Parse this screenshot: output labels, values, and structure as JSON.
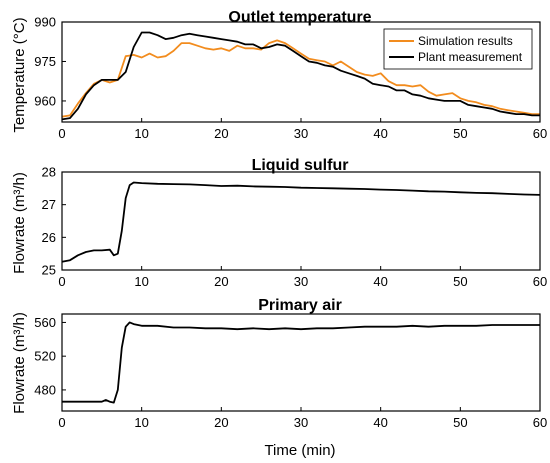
{
  "xlabel": "Time (min)",
  "colors": {
    "simulation": "#F28C1E",
    "plant": "#000000"
  },
  "chart_data": [
    {
      "type": "line",
      "title": "Outlet temperature",
      "ylabel": "Temperature (°C)",
      "xlim": [
        0,
        60
      ],
      "ylim": [
        952,
        990
      ],
      "xticks": [
        0,
        10,
        20,
        30,
        40,
        50,
        60
      ],
      "yticks": [
        960,
        975,
        990
      ],
      "legend": "top-right",
      "series": [
        {
          "name": "Simulation results",
          "color": "#F28C1E",
          "x": [
            0,
            1,
            2,
            3,
            4,
            5,
            6,
            7,
            8,
            9,
            10,
            11,
            12,
            13,
            14,
            15,
            16,
            17,
            18,
            19,
            20,
            21,
            22,
            23,
            24,
            25,
            26,
            27,
            28,
            29,
            30,
            31,
            32,
            33,
            34,
            35,
            36,
            37,
            38,
            39,
            40,
            41,
            42,
            43,
            44,
            45,
            46,
            47,
            48,
            49,
            50,
            51,
            52,
            53,
            54,
            55,
            56,
            57,
            58,
            59,
            60
          ],
          "values": [
            954,
            954.5,
            959,
            963,
            966.5,
            968,
            967,
            968,
            977,
            977.5,
            976.5,
            978,
            976.5,
            977,
            979,
            982,
            982,
            981,
            980,
            979.5,
            980,
            979,
            981,
            980,
            980,
            979.5,
            982,
            983,
            982,
            980,
            978,
            976,
            975.5,
            975,
            973.5,
            975,
            973,
            971,
            970,
            969.5,
            970.5,
            967.5,
            966,
            966,
            965.5,
            966,
            963.5,
            962,
            962.5,
            963,
            961,
            960,
            959.5,
            958.5,
            958,
            957,
            956.5,
            956,
            955.5,
            955,
            955
          ]
        },
        {
          "name": "Plant measurement",
          "color": "#000000",
          "x": [
            0,
            1,
            2,
            3,
            4,
            5,
            6,
            7,
            8,
            9,
            10,
            11,
            12,
            13,
            14,
            15,
            16,
            17,
            18,
            19,
            20,
            21,
            22,
            23,
            24,
            25,
            26,
            27,
            28,
            29,
            30,
            31,
            32,
            33,
            34,
            35,
            36,
            37,
            38,
            39,
            40,
            41,
            42,
            43,
            44,
            45,
            46,
            47,
            48,
            49,
            50,
            51,
            52,
            53,
            54,
            55,
            56,
            57,
            58,
            59,
            60
          ],
          "values": [
            953,
            953.5,
            957,
            962.5,
            966,
            968,
            968,
            968,
            971,
            980.5,
            986,
            986,
            985,
            983.5,
            984,
            985,
            985.5,
            985,
            984.5,
            984,
            983.5,
            983,
            982.5,
            981.5,
            981.5,
            980,
            980.5,
            981.5,
            981,
            979,
            977,
            975,
            974.5,
            973.5,
            973,
            971.5,
            970.5,
            969.5,
            968.5,
            966.5,
            966,
            965.5,
            964,
            964,
            962.5,
            962,
            961,
            960.5,
            960,
            960,
            960,
            958.5,
            958,
            957.5,
            957,
            956,
            955.5,
            955,
            955,
            954.5,
            954.5
          ]
        }
      ]
    },
    {
      "type": "line",
      "title": "Liquid sulfur",
      "ylabel": "Flowrate (m³/h)",
      "xlim": [
        0,
        60
      ],
      "ylim": [
        25,
        28
      ],
      "xticks": [
        0,
        10,
        20,
        30,
        40,
        50,
        60
      ],
      "yticks": [
        25,
        26,
        27,
        28
      ],
      "series": [
        {
          "color": "#000000",
          "x": [
            0,
            1,
            2,
            3,
            4,
            5,
            6,
            6.5,
            7,
            7.5,
            8,
            8.5,
            9,
            10,
            12,
            14,
            16,
            18,
            20,
            22,
            24,
            26,
            28,
            30,
            32,
            34,
            36,
            38,
            40,
            42,
            44,
            46,
            48,
            50,
            52,
            54,
            56,
            58,
            60
          ],
          "values": [
            25.25,
            25.3,
            25.45,
            25.55,
            25.6,
            25.6,
            25.62,
            25.45,
            25.5,
            26.2,
            27.2,
            27.6,
            27.68,
            27.66,
            27.64,
            27.63,
            27.62,
            27.6,
            27.57,
            27.58,
            27.56,
            27.55,
            27.54,
            27.52,
            27.51,
            27.5,
            27.49,
            27.48,
            27.46,
            27.45,
            27.43,
            27.41,
            27.4,
            27.38,
            27.36,
            27.35,
            27.33,
            27.31,
            27.3
          ]
        }
      ]
    },
    {
      "type": "line",
      "title": "Primary air",
      "ylabel": "Flowrate (m³/h)",
      "xlim": [
        0,
        60
      ],
      "ylim": [
        455,
        570
      ],
      "xticks": [
        0,
        10,
        20,
        30,
        40,
        50,
        60
      ],
      "yticks": [
        480,
        520,
        560
      ],
      "series": [
        {
          "color": "#000000",
          "x": [
            0,
            1,
            2,
            3,
            4,
            5,
            5.5,
            6,
            6.5,
            7,
            7.5,
            8,
            8.5,
            9,
            10,
            12,
            14,
            16,
            18,
            20,
            22,
            24,
            26,
            28,
            30,
            32,
            34,
            36,
            38,
            40,
            42,
            44,
            46,
            48,
            50,
            52,
            54,
            56,
            58,
            60
          ],
          "values": [
            466,
            466,
            466,
            466,
            466,
            466,
            468,
            466,
            465,
            480,
            530,
            555,
            560,
            558,
            556,
            556,
            554,
            554,
            553,
            553,
            552,
            553,
            552,
            553,
            552,
            553,
            553,
            554,
            555,
            555,
            555,
            556,
            555,
            556,
            556,
            556,
            557,
            557,
            557,
            557
          ]
        }
      ]
    }
  ]
}
